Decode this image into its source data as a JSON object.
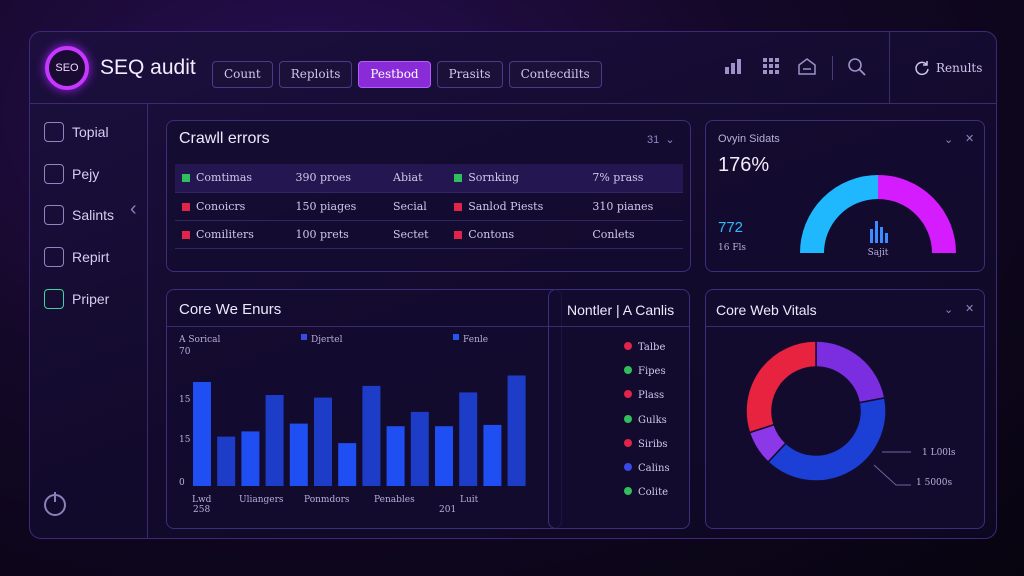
{
  "header": {
    "logo_text": "SEO",
    "title": "SEQ audit",
    "tabs": [
      "Count",
      "Reploits",
      "Pestbod",
      "Prasits",
      "Contecdilts"
    ],
    "active_tab": 2,
    "results_label": "Renults"
  },
  "sidebar": {
    "items": [
      {
        "label": "Topial",
        "icon": "mail-icon"
      },
      {
        "label": "Pejy",
        "icon": "user-icon"
      },
      {
        "label": "Salints",
        "icon": "document-icon"
      },
      {
        "label": "Repirt",
        "icon": "report-icon"
      },
      {
        "label": "Priper",
        "icon": "shield-icon"
      }
    ]
  },
  "crawl_errors": {
    "title": "Crawll errors",
    "control": "31",
    "rows": [
      {
        "c1": {
          "color": "#2fbf5c",
          "text": "Comtimas"
        },
        "c2": "390 proes",
        "c3": "Abiat",
        "c4": {
          "color": "#2fbf5c",
          "text": "Sornking"
        },
        "c5": "7% prass"
      },
      {
        "c1": {
          "color": "#e0244a",
          "text": "Conoicrs"
        },
        "c2": "150 piages",
        "c3": "Secial",
        "c4": {
          "color": "#e0244a",
          "text": "Sanlod Piests"
        },
        "c5": "310 pianes"
      },
      {
        "c1": {
          "color": "#e0244a",
          "text": "Comiliters"
        },
        "c2": "100 prets",
        "c3": "Sectet",
        "c4": {
          "color": "#e0244a",
          "text": "Contons"
        },
        "c5": "Conlets"
      }
    ]
  },
  "gauge_panel": {
    "title": "Ovyin Sidats",
    "percent": "176%",
    "value": "772",
    "sub": "16 Fls",
    "center_label": "Sajit",
    "colors": {
      "left": "#1fb8ff",
      "right": "#d41cff"
    }
  },
  "core_errors": {
    "title": "Core We Enurs",
    "legend": [
      "A Sorical",
      "Djertel",
      "Fenle"
    ],
    "legend_colors": [
      "#1a3acc",
      "#3a4ae8",
      "#2456f0"
    ],
    "y_ticks": [
      "70",
      "15",
      "15",
      "0"
    ],
    "x_labels": [
      "Lwd",
      "Uliangers",
      "Ponmdors",
      "Penables",
      "Luit"
    ],
    "x_sub_labels": [
      "258",
      "201"
    ],
    "bar_color": "#1f4ef2",
    "bar_color_dim": "#1d3dc8"
  },
  "chart_data": {
    "type": "bar",
    "values": [
      80,
      38,
      42,
      70,
      48,
      68,
      33,
      77,
      46,
      57,
      46,
      72,
      47,
      85
    ],
    "ylim": [
      0,
      100
    ]
  },
  "mentler": {
    "title": "Nontler  | A Canlis",
    "items": [
      {
        "color": "#e0244a",
        "text": "Talbe"
      },
      {
        "color": "#2fbf5c",
        "text": "Fipes"
      },
      {
        "color": "#e0244a",
        "text": "Plass"
      },
      {
        "color": "#2fbf5c",
        "text": "Gulks"
      },
      {
        "color": "#e0244a",
        "text": "Siribs"
      },
      {
        "color": "#3a4ae8",
        "text": "Calins"
      },
      {
        "color": "#2fbf5c",
        "text": "Colite"
      }
    ]
  },
  "vitals": {
    "title": "Core Web Vitals",
    "label1": "1 L00ls",
    "label2": "1 5000s",
    "segments": [
      {
        "value": 22,
        "color": "#7a2ee0"
      },
      {
        "value": 40,
        "color": "#1c3fd6"
      },
      {
        "value": 8,
        "color": "#8c38e8"
      },
      {
        "value": 30,
        "color": "#e8233f"
      }
    ]
  }
}
